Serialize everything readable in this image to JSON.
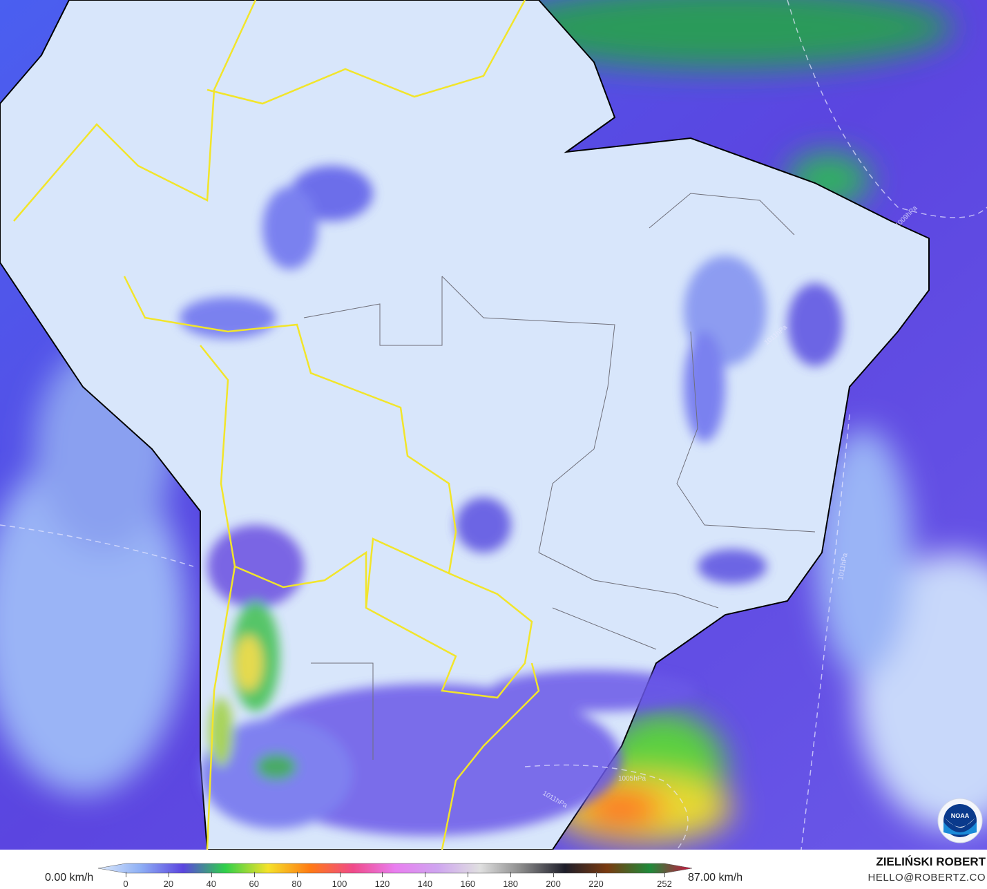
{
  "map": {
    "isobar_labels": [
      "1011hPa",
      "1005hPa",
      "1011hPa",
      "1011hPa",
      "1009hPa"
    ],
    "logo": "NOAA",
    "colors": {
      "ocean": "#5b45e0",
      "land_calm": "#dce9fb",
      "borders_country": "#f2e52a",
      "coastline": "#000000",
      "state_borders": "#777777"
    }
  },
  "legend": {
    "min_label": "0.00 km/h",
    "max_label": "87.00 km/h",
    "ticks": [
      "0",
      "20",
      "40",
      "60",
      "80",
      "100",
      "120",
      "140",
      "160",
      "180",
      "200",
      "220",
      "252"
    ],
    "gradient": [
      "#dce9fb",
      "#8fb0f5",
      "#5b45e0",
      "#2fd04a",
      "#f5e22a",
      "#ff7a14",
      "#f04a8a",
      "#e97ef0",
      "#cfa5f0",
      "#e0e0e0",
      "#888888",
      "#1e1e2a",
      "#7a3a10",
      "#1f8a3a",
      "#d01040"
    ]
  },
  "credit": {
    "author": "ZIELIŃSKI ROBERT",
    "email": "HELLO@ROBERTZ.CO"
  }
}
